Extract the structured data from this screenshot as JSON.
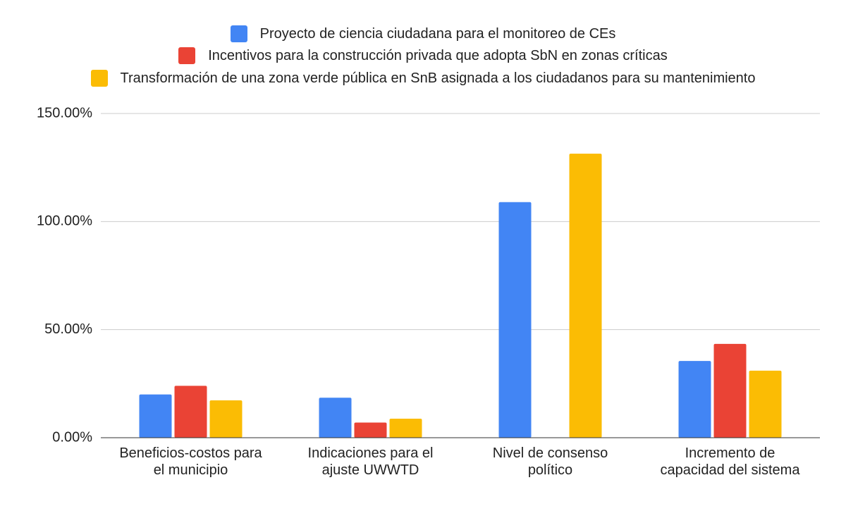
{
  "chart_data": {
    "type": "bar",
    "categories": [
      "Beneficios-costos para el municipio",
      "Indicaciones para el ajuste UWWTD",
      "Nivel de consenso político",
      "Incremento de capacidad del sistema"
    ],
    "series": [
      {
        "name": "Proyecto de ciencia ciudadana para el monitoreo de CEs",
        "color": "#4285f4",
        "values": [
          20,
          18.5,
          109,
          35.5
        ]
      },
      {
        "name": "Incentivos para la construcción privada que adopta SbN en zonas críticas",
        "color": "#ea4335",
        "values": [
          24,
          7,
          null,
          43.4
        ]
      },
      {
        "name": "Transformación de una zona verde pública en SnB asignada a los ciudadanos para su mantenimiento",
        "color": "#fbbc04",
        "values": [
          17.3,
          8.8,
          131.4,
          31
        ]
      }
    ],
    "ylim": [
      0,
      150
    ],
    "yticks": [
      {
        "value": 0,
        "label": "0.00%"
      },
      {
        "value": 50,
        "label": "50.00%"
      },
      {
        "value": 100,
        "label": "100.00%"
      },
      {
        "value": 150,
        "label": "150.00%"
      }
    ],
    "grid": true
  }
}
